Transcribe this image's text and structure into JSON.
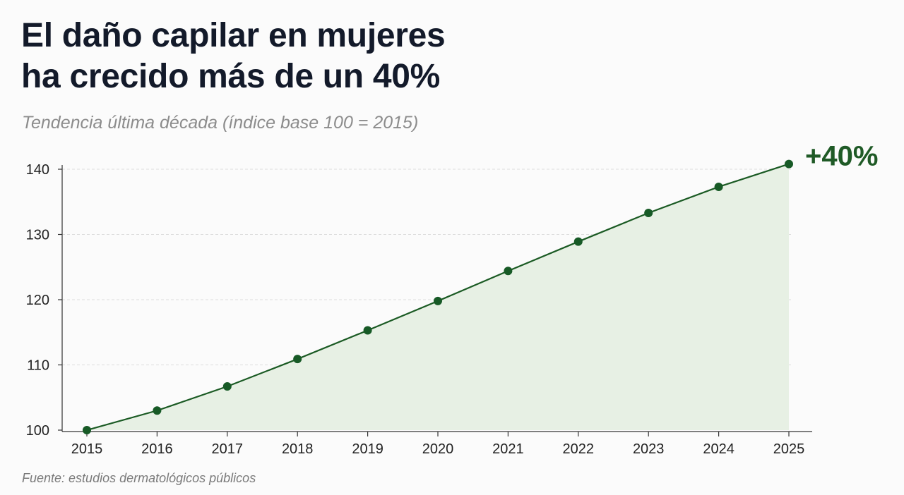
{
  "header": {
    "title_line1": "El daño capilar en mujeres",
    "title_line2": "ha crecido más de un 40%",
    "subtitle": "Tendencia última década (índice base 100 = 2015)"
  },
  "footer": {
    "source": "Fuente: estudios dermatológicos públicos"
  },
  "chart_data": {
    "type": "area",
    "title": "El daño capilar en mujeres ha crecido más de un 40%",
    "subtitle": "Tendencia última década (índice base 100 = 2015)",
    "xlabel": "",
    "ylabel": "",
    "x": [
      2015,
      2016,
      2017,
      2018,
      2019,
      2020,
      2021,
      2022,
      2023,
      2024,
      2025
    ],
    "values": [
      100,
      103,
      106.7,
      110.9,
      115.3,
      119.8,
      124.4,
      128.9,
      133.3,
      137.3,
      140.8
    ],
    "xlim": [
      2015,
      2025
    ],
    "ylim": [
      100,
      140
    ],
    "y_ticks": [
      100,
      110,
      120,
      130,
      140
    ],
    "grid": true,
    "annotation": "+40%",
    "colors": {
      "line": "#1a5a23",
      "marker": "#175a26",
      "fill": "#e7f0e4",
      "annotation": "#1f5a26",
      "grid": "#dcdcdc",
      "axis": "#333333"
    }
  }
}
